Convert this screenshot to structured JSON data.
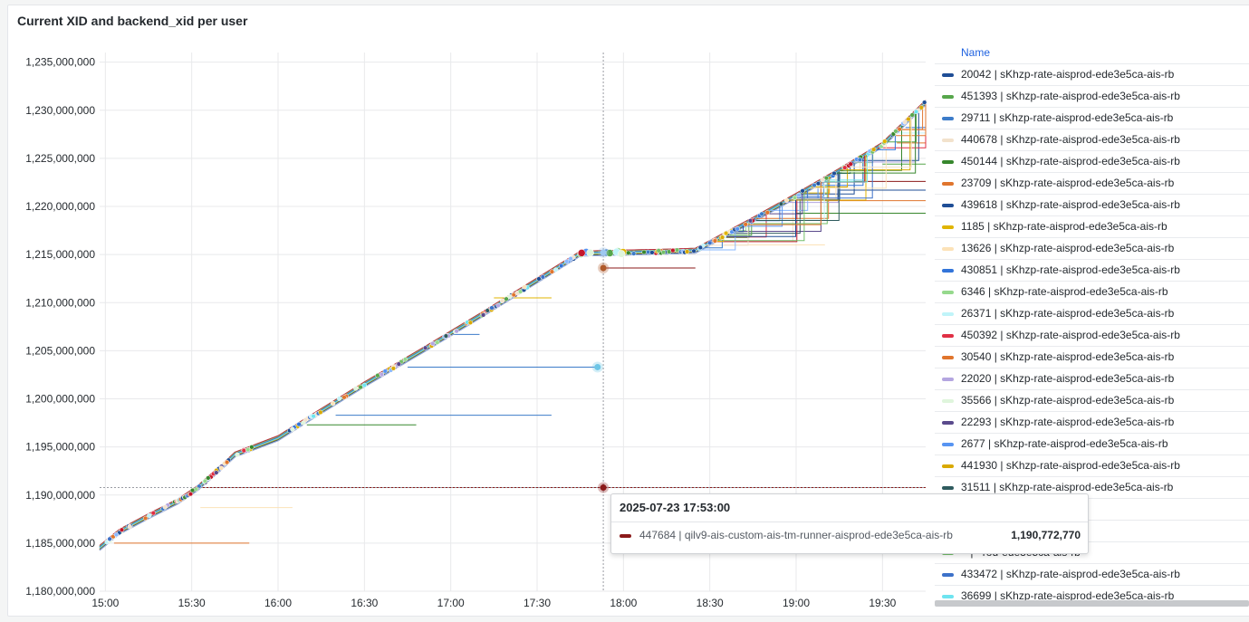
{
  "panel": {
    "title": "Current XID and backend_xid per user"
  },
  "legend": {
    "header": "Name",
    "items": [
      {
        "label": "20042 | sKhzp-rate-aisprod-ede3e5ca-ais-rb",
        "color": "#1f4e96"
      },
      {
        "label": "451393 | sKhzp-rate-aisprod-ede3e5ca-ais-rb",
        "color": "#56a64b"
      },
      {
        "label": "29711 | sKhzp-rate-aisprod-ede3e5ca-ais-rb",
        "color": "#3d7cc9"
      },
      {
        "label": "440678 | sKhzp-rate-aisprod-ede3e5ca-ais-rb",
        "color": "#f2e2cc"
      },
      {
        "label": "450144 | sKhzp-rate-aisprod-ede3e5ca-ais-rb",
        "color": "#37872d"
      },
      {
        "label": "23709 | sKhzp-rate-aisprod-ede3e5ca-ais-rb",
        "color": "#e0752d"
      },
      {
        "label": "439618 | sKhzp-rate-aisprod-ede3e5ca-ais-rb",
        "color": "#1f4e96"
      },
      {
        "label": "1185 | sKhzp-rate-aisprod-ede3e5ca-ais-rb",
        "color": "#e0b400"
      },
      {
        "label": "13626 | sKhzp-rate-aisprod-ede3e5ca-ais-rb",
        "color": "#fce2b8"
      },
      {
        "label": "430851 | sKhzp-rate-aisprod-ede3e5ca-ais-rb",
        "color": "#3274d9"
      },
      {
        "label": "6346 | sKhzp-rate-aisprod-ede3e5ca-ais-rb",
        "color": "#96d98d"
      },
      {
        "label": "26371 | sKhzp-rate-aisprod-ede3e5ca-ais-rb",
        "color": "#c0f4f9"
      },
      {
        "label": "450392 | sKhzp-rate-aisprod-ede3e5ca-ais-rb",
        "color": "#e02f44"
      },
      {
        "label": "30540 | sKhzp-rate-aisprod-ede3e5ca-ais-rb",
        "color": "#e0752d"
      },
      {
        "label": "22020 | sKhzp-rate-aisprod-ede3e5ca-ais-rb",
        "color": "#b4a6e0"
      },
      {
        "label": "35566 | sKhzp-rate-aisprod-ede3e5ca-ais-rb",
        "color": "#dff5dc"
      },
      {
        "label": "22293 | sKhzp-rate-aisprod-ede3e5ca-ais-rb",
        "color": "#5a4a8c"
      },
      {
        "label": "2677 | sKhzp-rate-aisprod-ede3e5ca-ais-rb",
        "color": "#5794f2"
      },
      {
        "label": "441930 | sKhzp-rate-aisprod-ede3e5ca-ais-rb",
        "color": "#d9a900"
      },
      {
        "label": "31511 | sKhzp-rate-aisprod-ede3e5ca-ais-rb",
        "color": "#2f5b5e"
      },
      {
        "label": "~ | ~od-ede3e5ca-ais-rb",
        "color": "#8ab8ff"
      },
      {
        "label": "~ | ~od-ede3e5ca-ais-rb",
        "color": "#c4162a"
      },
      {
        "label": "~ | ~rod-ede3e5ca-ais-rb",
        "color": "#73bf69"
      },
      {
        "label": "433472 | sKhzp-rate-aisprod-ede3e5ca-ais-rb",
        "color": "#3d71c9"
      },
      {
        "label": "36699 | sKhzp-rate-aisprod-ede3e5ca-ais-rb",
        "color": "#6ee4f0"
      }
    ]
  },
  "tooltip": {
    "time": "2025-07-23 17:53:00",
    "series": "447684 | qilv9-ais-custom-ais-tm-runner-aisprod-ede3e5ca-ais-rb",
    "value": "1,190,772,770",
    "color": "#8b1a1a"
  },
  "chart_data": {
    "type": "line",
    "xlabel": "",
    "ylabel": "",
    "x_ticks": [
      "15:00",
      "15:30",
      "16:00",
      "16:30",
      "17:00",
      "17:30",
      "18:00",
      "18:30",
      "19:00",
      "19:30"
    ],
    "y_ticks": [
      "1,180,000,000",
      "1,185,000,000",
      "1,190,000,000",
      "1,195,000,000",
      "1,200,000,000",
      "1,205,000,000",
      "1,210,000,000",
      "1,215,000,000",
      "1,220,000,000",
      "1,225,000,000",
      "1,230,000,000",
      "1,235,000,000"
    ],
    "xlim": [
      "14:58",
      "19:45"
    ],
    "ylim": [
      1180000000,
      1236000000
    ],
    "grid": true,
    "cursor_time": "17:53",
    "main_trend": {
      "x": [
        "14:58",
        "15:05",
        "15:15",
        "15:25",
        "15:32",
        "15:40",
        "15:45",
        "16:00",
        "16:10",
        "16:30",
        "16:50",
        "17:10",
        "17:30",
        "17:45",
        "18:00",
        "18:15",
        "18:25",
        "18:45",
        "19:00",
        "19:15",
        "19:30",
        "19:45"
      ],
      "y": [
        1184500000,
        1186200000,
        1187800000,
        1189300000,
        1190700000,
        1192800000,
        1194200000,
        1195900000,
        1197800000,
        1201500000,
        1205000000,
        1208600000,
        1212300000,
        1215100000,
        1215200000,
        1215300000,
        1215400000,
        1218600000,
        1221100000,
        1223700000,
        1226400000,
        1230800000
      ]
    },
    "flat_segments": [
      {
        "color": "#8b1a1a",
        "start": "15:33",
        "end": "19:45",
        "value": 1190772770
      },
      {
        "color": "#e0752d",
        "start": "15:03",
        "end": "15:50",
        "value": 1185000000
      },
      {
        "color": "#fce2b8",
        "start": "15:33",
        "end": "16:05",
        "value": 1188700000
      },
      {
        "color": "#37872d",
        "start": "16:10",
        "end": "16:48",
        "value": 1197300000
      },
      {
        "color": "#3d7cc9",
        "start": "16:20",
        "end": "17:35",
        "value": 1198300000
      },
      {
        "color": "#3d7cc9",
        "start": "16:45",
        "end": "17:50",
        "value": 1203300000
      },
      {
        "color": "#3d7cc9",
        "start": "17:00",
        "end": "17:10",
        "value": 1206700000
      },
      {
        "color": "#e0b400",
        "start": "17:15",
        "end": "17:35",
        "value": 1210500000
      },
      {
        "color": "#8b1a1a",
        "start": "17:52",
        "end": "18:25",
        "value": 1213600000
      },
      {
        "color": "#fce2b8",
        "start": "18:35",
        "end": "19:10",
        "value": 1216000000
      },
      {
        "color": "#37872d",
        "start": "19:00",
        "end": "19:45",
        "value": 1219300000
      },
      {
        "color": "#e0752d",
        "start": "19:10",
        "end": "19:45",
        "value": 1220600000
      },
      {
        "color": "#1f4e96",
        "start": "19:15",
        "end": "19:45",
        "value": 1221700000
      },
      {
        "color": "#8b1a1a",
        "start": "19:20",
        "end": "19:45",
        "value": 1222600000
      },
      {
        "color": "#56a64b",
        "start": "19:30",
        "end": "19:45",
        "value": 1224400000
      },
      {
        "color": "#e0752d",
        "start": "19:35",
        "end": "19:45",
        "value": 1226600000
      },
      {
        "color": "#3274d9",
        "start": "19:38",
        "end": "19:45",
        "value": 1228200000
      }
    ],
    "highlight_points": [
      {
        "color": "#8b1a1a",
        "time": "17:53",
        "value": 1190772770
      },
      {
        "color": "#6ec6e6",
        "time": "17:51",
        "value": 1203300000
      },
      {
        "color": "#b05a2a",
        "time": "17:53",
        "value": 1213600000
      },
      {
        "color": "#9ec8f0",
        "time": "17:53",
        "value": 1215200000
      }
    ]
  }
}
